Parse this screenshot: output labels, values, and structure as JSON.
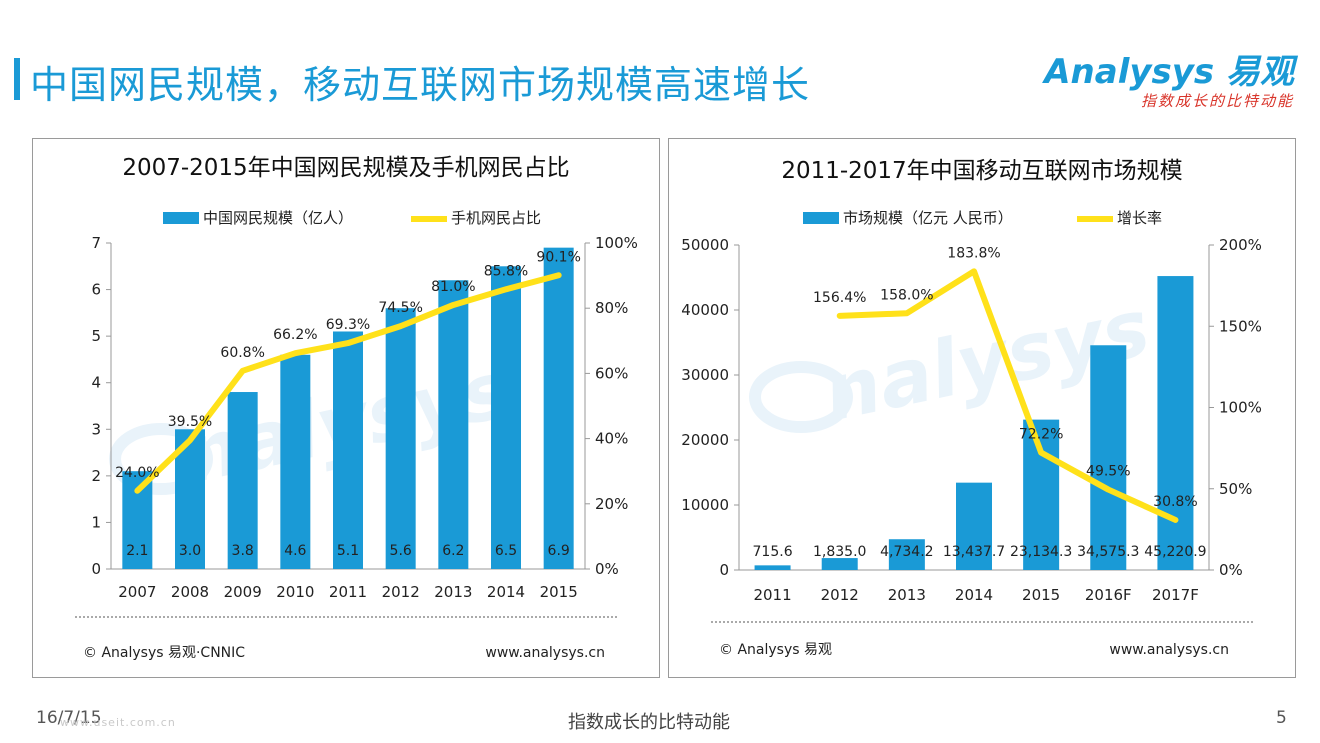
{
  "header": {
    "title": "中国网民规模，移动互联网市场规模高速增长",
    "logo_text": "nalysys 易观",
    "logo_mark": "A",
    "logo_slogan": "指数成长的比特动能",
    "accent_color": "#1a9ad6"
  },
  "footer": {
    "date": "16/7/15",
    "slogan": "指数成长的比特动能",
    "page_number": "5",
    "watermark_site": "www.useit.com.cn"
  },
  "chart_data": [
    {
      "type": "bar",
      "title": "2007-2015年中国网民规模及手机网民占比",
      "categories": [
        "2007",
        "2008",
        "2009",
        "2010",
        "2011",
        "2012",
        "2013",
        "2014",
        "2015"
      ],
      "series": [
        {
          "name": "中国网民规模（亿人）",
          "kind": "bar",
          "axis": "left",
          "color": "#1a9ad6",
          "values": [
            2.1,
            3.0,
            3.8,
            4.6,
            5.1,
            5.6,
            6.2,
            6.5,
            6.9
          ],
          "labels": [
            "2.1",
            "3.0",
            "3.8",
            "4.6",
            "5.1",
            "5.6",
            "6.2",
            "6.5",
            "6.9"
          ]
        },
        {
          "name": "手机网民占比",
          "kind": "line",
          "axis": "right",
          "color": "#ffe11a",
          "values": [
            24.0,
            39.5,
            60.8,
            66.2,
            69.3,
            74.5,
            81.0,
            85.8,
            90.1
          ],
          "labels": [
            "24.0%",
            "39.5%",
            "60.8%",
            "66.2%",
            "69.3%",
            "74.5%",
            "81.0%",
            "85.8%",
            "90.1%"
          ]
        }
      ],
      "ylim_left": [
        0,
        7
      ],
      "yticks_left": [
        "0",
        "1",
        "2",
        "3",
        "4",
        "5",
        "6",
        "7"
      ],
      "ylim_right": [
        0,
        100
      ],
      "yticks_right": [
        "0%",
        "20%",
        "40%",
        "60%",
        "80%",
        "100%"
      ],
      "legend_position": "top",
      "grid": false,
      "source": "© Analysys 易观·CNNIC",
      "website": "www.analysys.cn",
      "watermark": "nalysys"
    },
    {
      "type": "bar",
      "title": "2011-2017年中国移动互联网市场规模",
      "categories": [
        "2011",
        "2012",
        "2013",
        "2014",
        "2015",
        "2016F",
        "2017F"
      ],
      "series": [
        {
          "name": "市场规模（亿元 人民币）",
          "kind": "bar",
          "axis": "left",
          "color": "#1a9ad6",
          "values": [
            715.6,
            1835.0,
            4734.2,
            13437.7,
            23134.3,
            34575.3,
            45220.9
          ],
          "labels": [
            "715.6",
            "1,835.0",
            "4,734.2",
            "13,437.7",
            "23,134.3",
            "34,575.3",
            "45,220.9"
          ]
        },
        {
          "name": "增长率",
          "kind": "line",
          "axis": "right",
          "color": "#ffe11a",
          "values": [
            null,
            156.4,
            158.0,
            183.8,
            72.2,
            49.5,
            30.8
          ],
          "labels": [
            "",
            "156.4%",
            "158.0%",
            "183.8%",
            "72.2%",
            "49.5%",
            "30.8%"
          ]
        }
      ],
      "ylim_left": [
        0,
        50000
      ],
      "yticks_left": [
        "0",
        "10000",
        "20000",
        "30000",
        "40000",
        "50000"
      ],
      "ylim_right": [
        0,
        200
      ],
      "yticks_right": [
        "0%",
        "50%",
        "100%",
        "150%",
        "200%"
      ],
      "legend_position": "top",
      "grid": false,
      "source": "© Analysys 易观",
      "website": "www.analysys.cn",
      "watermark": "nalysys"
    }
  ]
}
